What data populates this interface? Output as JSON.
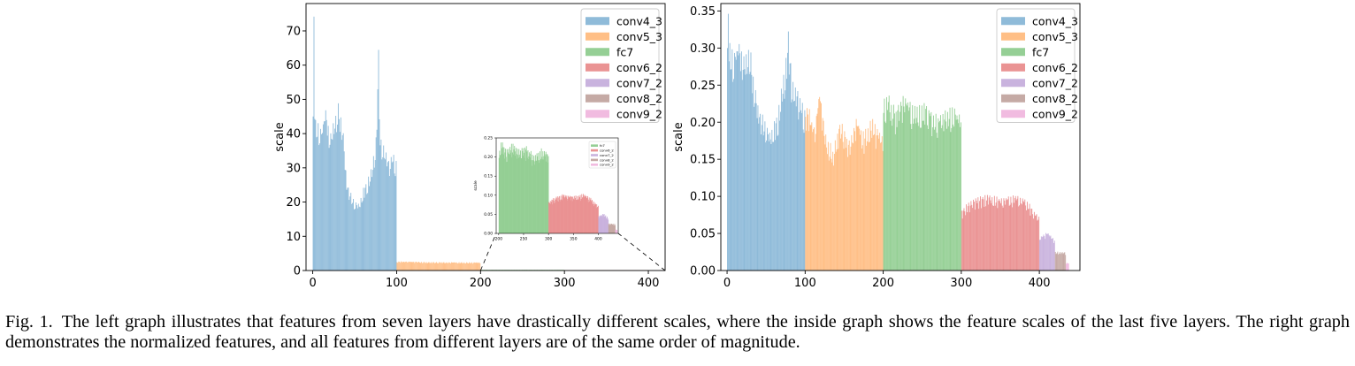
{
  "chart_data": [
    {
      "id": "left",
      "type": "bar",
      "title": "",
      "xlabel": "",
      "ylabel": "scale",
      "xlim": [
        -8,
        420
      ],
      "ylim": [
        0,
        78
      ],
      "xticks": [
        0,
        100,
        200,
        300,
        400
      ],
      "yticks": [
        0,
        10,
        20,
        30,
        40,
        50,
        60,
        70
      ],
      "legend": "top-right",
      "series": [
        {
          "name": "conv4_3",
          "color": "#1f77b4",
          "x_range": [
            0,
            100
          ],
          "profile": [
            [
              0,
              45
            ],
            [
              1,
              75
            ],
            [
              2,
              51
            ],
            [
              3,
              43
            ],
            [
              6,
              42
            ],
            [
              10,
              40
            ],
            [
              15,
              46
            ],
            [
              20,
              38
            ],
            [
              25,
              44
            ],
            [
              30,
              47
            ],
            [
              35,
              42
            ],
            [
              40,
              25
            ],
            [
              45,
              22
            ],
            [
              50,
              20
            ],
            [
              55,
              19
            ],
            [
              60,
              24
            ],
            [
              65,
              26
            ],
            [
              70,
              30
            ],
            [
              75,
              38
            ],
            [
              78,
              64
            ],
            [
              80,
              38
            ],
            [
              85,
              36
            ],
            [
              90,
              31
            ],
            [
              95,
              33
            ],
            [
              100,
              31
            ]
          ]
        },
        {
          "name": "conv5_3",
          "color": "#ff7f0e",
          "x_range": [
            100,
            200
          ],
          "profile": [
            [
              100,
              2.6
            ],
            [
              150,
              2.4
            ],
            [
              200,
              2.3
            ]
          ]
        },
        {
          "name": "fc7",
          "color": "#2ca02c",
          "x_range": [
            200,
            300
          ],
          "profile": [
            [
              200,
              0.22
            ],
            [
              300,
              0.2
            ]
          ]
        },
        {
          "name": "conv6_2",
          "color": "#d62728",
          "x_range": [
            300,
            400
          ],
          "profile": [
            [
              300,
              0.09
            ],
            [
              400,
              0.09
            ]
          ]
        },
        {
          "name": "conv7_2",
          "color": "#9467bd",
          "x_range": [
            400,
            420
          ],
          "profile": [
            [
              400,
              0.045
            ],
            [
              420,
              0.04
            ]
          ]
        },
        {
          "name": "conv8_2",
          "color": "#8c564b",
          "x_range": [
            420,
            434
          ],
          "profile": [
            [
              420,
              0.025
            ],
            [
              434,
              0.024
            ]
          ]
        },
        {
          "name": "conv9_2",
          "color": "#e377c2",
          "x_range": [
            434,
            438
          ],
          "profile": [
            [
              434,
              0.01
            ],
            [
              438,
              0.01
            ]
          ]
        }
      ]
    },
    {
      "id": "inset",
      "type": "bar",
      "title": "",
      "xlabel": "",
      "ylabel": "scale",
      "xlim": [
        195,
        440
      ],
      "ylim": [
        0,
        0.25
      ],
      "xticks": [
        200,
        250,
        300,
        350,
        400
      ],
      "yticks": [
        0.0,
        0.05,
        0.1,
        0.15,
        0.2,
        0.25
      ],
      "legend": "top-right",
      "series": [
        {
          "name": "fc7",
          "color": "#2ca02c",
          "x_range": [
            200,
            300
          ],
          "profile": [
            [
              200,
              0.21
            ],
            [
              205,
              0.235
            ],
            [
              215,
              0.21
            ],
            [
              225,
              0.23
            ],
            [
              240,
              0.215
            ],
            [
              255,
              0.22
            ],
            [
              270,
              0.2
            ],
            [
              285,
              0.215
            ],
            [
              300,
              0.205
            ]
          ]
        },
        {
          "name": "conv6_2",
          "color": "#d62728",
          "x_range": [
            300,
            400
          ],
          "profile": [
            [
              300,
              0.08
            ],
            [
              310,
              0.09
            ],
            [
              330,
              0.1
            ],
            [
              350,
              0.095
            ],
            [
              370,
              0.1
            ],
            [
              385,
              0.09
            ],
            [
              395,
              0.075
            ],
            [
              400,
              0.07
            ]
          ]
        },
        {
          "name": "conv7_2",
          "color": "#9467bd",
          "x_range": [
            400,
            420
          ],
          "profile": [
            [
              400,
              0.045
            ],
            [
              410,
              0.05
            ],
            [
              420,
              0.04
            ]
          ]
        },
        {
          "name": "conv8_2",
          "color": "#8c564b",
          "x_range": [
            420,
            434
          ],
          "profile": [
            [
              420,
              0.025
            ],
            [
              434,
              0.024
            ]
          ]
        },
        {
          "name": "conv9_2",
          "color": "#e377c2",
          "x_range": [
            434,
            438
          ],
          "profile": [
            [
              434,
              0.01
            ],
            [
              438,
              0.01
            ]
          ]
        }
      ]
    },
    {
      "id": "right",
      "type": "bar",
      "title": "",
      "xlabel": "",
      "ylabel": "scale",
      "xlim": [
        -8,
        452
      ],
      "ylim": [
        0,
        0.36
      ],
      "xticks": [
        0,
        100,
        200,
        300,
        400
      ],
      "yticks": [
        0.0,
        0.05,
        0.1,
        0.15,
        0.2,
        0.25,
        0.3,
        0.35
      ],
      "legend": "top-right",
      "series": [
        {
          "name": "conv4_3",
          "color": "#1f77b4",
          "x_range": [
            0,
            100
          ],
          "profile": [
            [
              0,
              0.3
            ],
            [
              1,
              0.35
            ],
            [
              3,
              0.3
            ],
            [
              8,
              0.285
            ],
            [
              15,
              0.3
            ],
            [
              20,
              0.28
            ],
            [
              28,
              0.3
            ],
            [
              35,
              0.24
            ],
            [
              40,
              0.21
            ],
            [
              48,
              0.2
            ],
            [
              55,
              0.18
            ],
            [
              60,
              0.2
            ],
            [
              65,
              0.21
            ],
            [
              70,
              0.25
            ],
            [
              75,
              0.28
            ],
            [
              78,
              0.32
            ],
            [
              82,
              0.26
            ],
            [
              88,
              0.24
            ],
            [
              95,
              0.22
            ],
            [
              100,
              0.21
            ]
          ]
        },
        {
          "name": "conv5_3",
          "color": "#ff7f0e",
          "x_range": [
            100,
            200
          ],
          "profile": [
            [
              100,
              0.22
            ],
            [
              105,
              0.21
            ],
            [
              112,
              0.185
            ],
            [
              118,
              0.24
            ],
            [
              125,
              0.18
            ],
            [
              135,
              0.16
            ],
            [
              145,
              0.2
            ],
            [
              155,
              0.17
            ],
            [
              165,
              0.2
            ],
            [
              175,
              0.18
            ],
            [
              185,
              0.2
            ],
            [
              195,
              0.18
            ],
            [
              200,
              0.175
            ]
          ]
        },
        {
          "name": "fc7",
          "color": "#2ca02c",
          "x_range": [
            200,
            300
          ],
          "profile": [
            [
              200,
              0.22
            ],
            [
              205,
              0.235
            ],
            [
              215,
              0.21
            ],
            [
              225,
              0.23
            ],
            [
              240,
              0.215
            ],
            [
              255,
              0.22
            ],
            [
              270,
              0.2
            ],
            [
              285,
              0.215
            ],
            [
              300,
              0.205
            ]
          ]
        },
        {
          "name": "conv6_2",
          "color": "#d62728",
          "x_range": [
            300,
            400
          ],
          "profile": [
            [
              300,
              0.08
            ],
            [
              310,
              0.09
            ],
            [
              330,
              0.1
            ],
            [
              350,
              0.095
            ],
            [
              370,
              0.1
            ],
            [
              385,
              0.09
            ],
            [
              395,
              0.075
            ],
            [
              400,
              0.07
            ]
          ]
        },
        {
          "name": "conv7_2",
          "color": "#9467bd",
          "x_range": [
            400,
            420
          ],
          "profile": [
            [
              400,
              0.045
            ],
            [
              410,
              0.05
            ],
            [
              420,
              0.04
            ]
          ]
        },
        {
          "name": "conv8_2",
          "color": "#8c564b",
          "x_range": [
            420,
            434
          ],
          "profile": [
            [
              420,
              0.025
            ],
            [
              434,
              0.024
            ]
          ]
        },
        {
          "name": "conv9_2",
          "color": "#e377c2",
          "x_range": [
            434,
            438
          ],
          "profile": [
            [
              434,
              0.01
            ],
            [
              438,
              0.01
            ]
          ]
        }
      ]
    }
  ],
  "caption": {
    "label": "Fig. 1.",
    "text": "The left graph illustrates that features from seven layers have drastically different scales, where the inside graph shows the feature scales of the last five layers. The right graph demonstrates the normalized features, and all features from different layers are of the same order of magnitude."
  }
}
